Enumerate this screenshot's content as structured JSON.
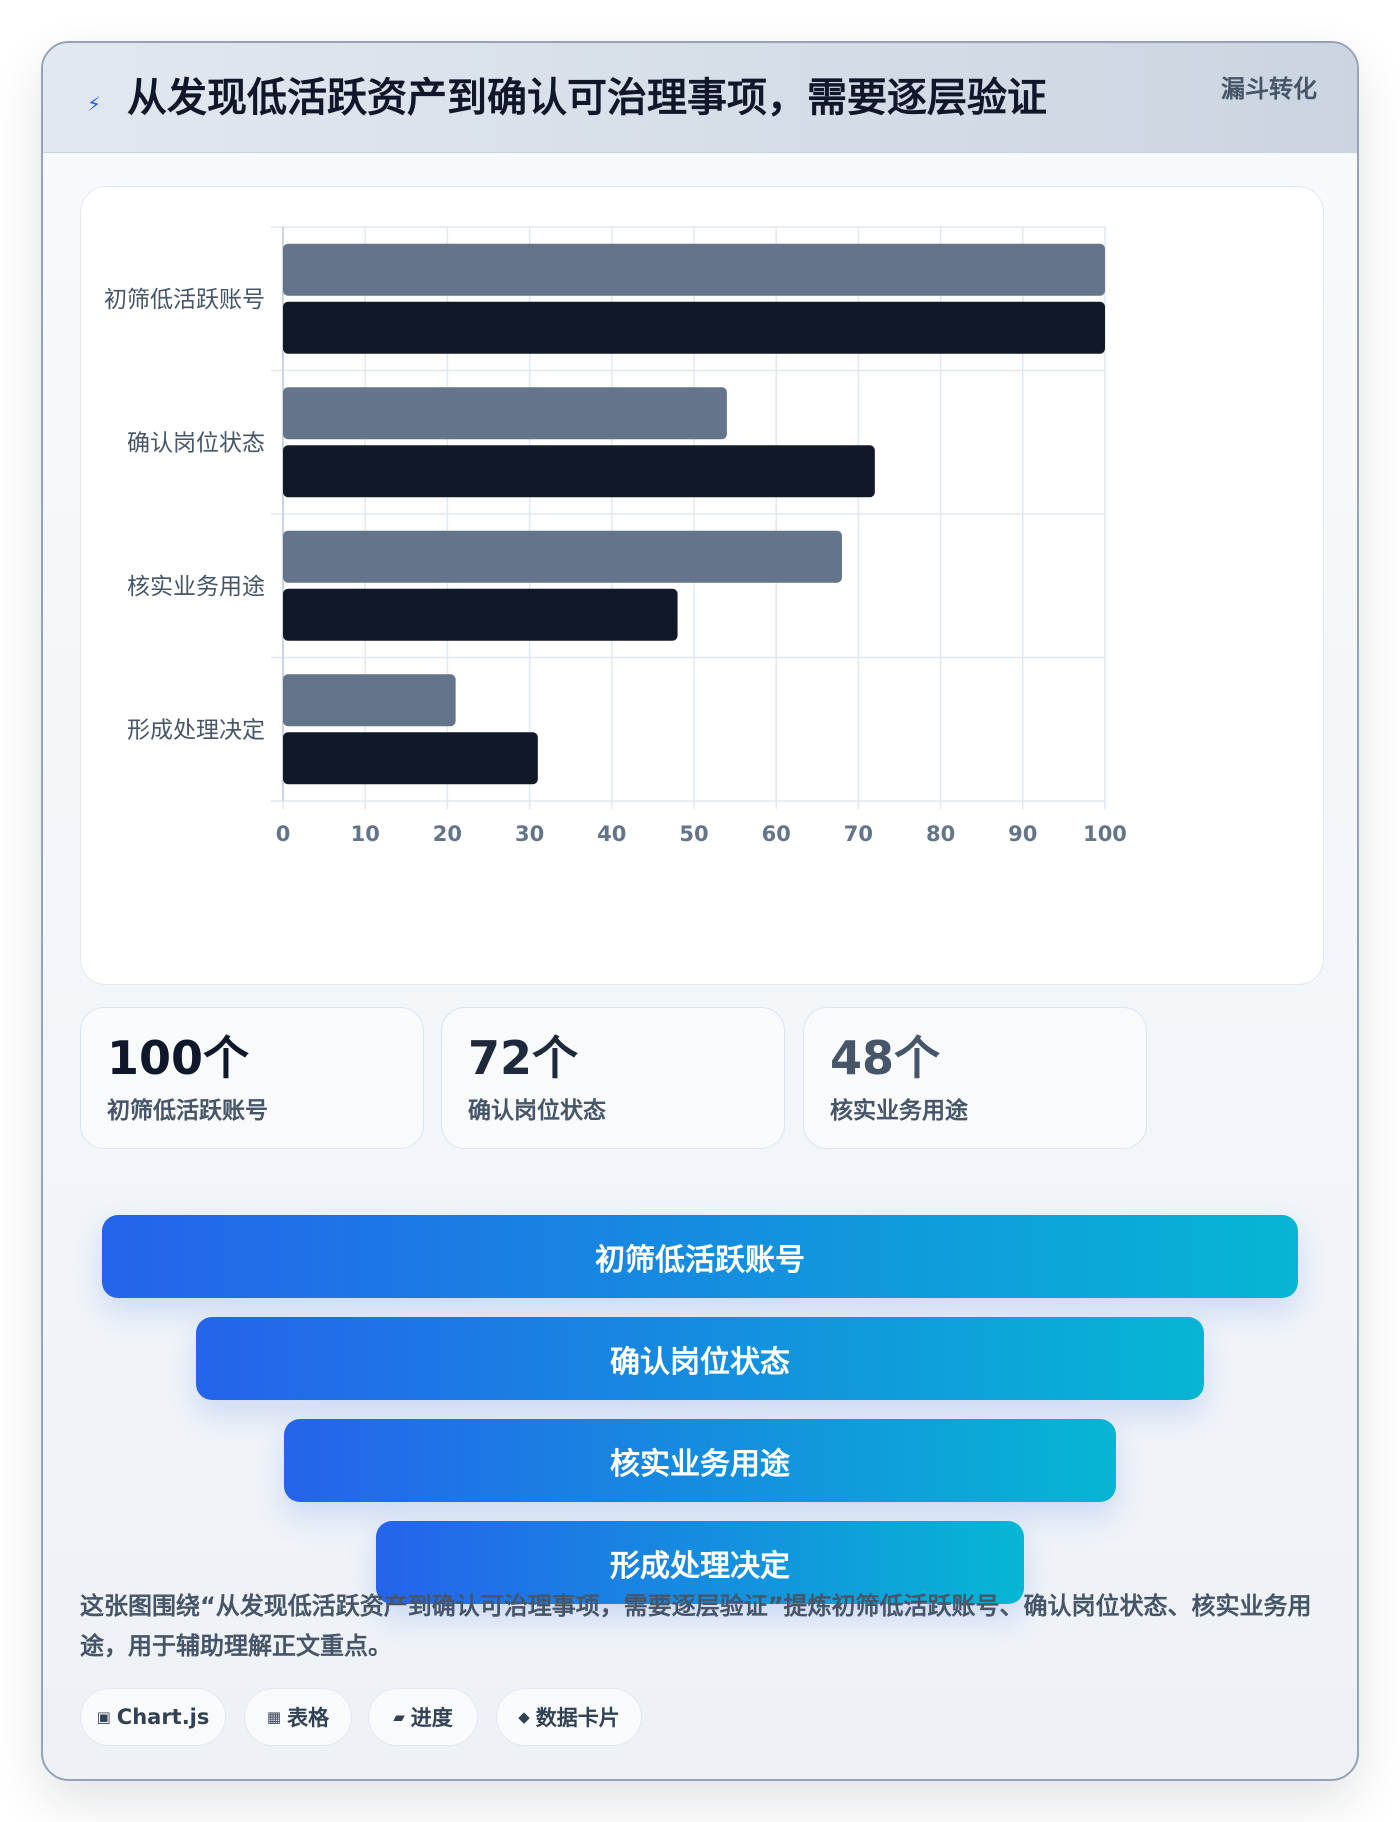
{
  "header": {
    "icon": "lightning-icon",
    "title": "从发现低活跃资产到确认可治理事项，需要逐层验证",
    "tag": "漏斗转化"
  },
  "chart_data": {
    "type": "bar",
    "orientation": "horizontal",
    "categories": [
      "初筛低活跃账号",
      "确认岗位状态",
      "核实业务用途",
      "形成处理决定"
    ],
    "series": [
      {
        "color": "#64748b",
        "values": [
          100,
          54,
          68,
          21
        ]
      },
      {
        "color": "#111827",
        "values": [
          100,
          72,
          48,
          31
        ]
      }
    ],
    "xlim": [
      0,
      100
    ],
    "xticks": [
      "0",
      "10",
      "20",
      "30",
      "40",
      "50",
      "60",
      "70",
      "80",
      "90",
      "100"
    ],
    "grid": true,
    "legend": "none"
  },
  "stats": [
    {
      "value": "100个",
      "label": "初筛低活跃账号",
      "color": "#0f172a"
    },
    {
      "value": "72个",
      "label": "确认岗位状态",
      "color": "#1e293b"
    },
    {
      "value": "48个",
      "label": "核实业务用途",
      "color": "#475569"
    }
  ],
  "funnel": [
    {
      "label": "初筛低活跃账号"
    },
    {
      "label": "确认岗位状态"
    },
    {
      "label": "核实业务用途"
    },
    {
      "label": "形成处理决定"
    }
  ],
  "summary": "这张图围绕“从发现低活跃资产到确认可治理事项，需要逐层验证”提炼初筛低活跃账号、确认岗位状态、核实业务用途，用于辅助理解正文重点。",
  "chips": [
    {
      "icon": "▣",
      "icon_name": "chart-icon",
      "label": "Chart.js"
    },
    {
      "icon": "▦",
      "icon_name": "table-icon",
      "label": "表格"
    },
    {
      "icon": "▰",
      "icon_name": "progress-icon",
      "label": "进度"
    },
    {
      "icon": "◆",
      "icon_name": "data-card-icon",
      "label": "数据卡片"
    }
  ]
}
